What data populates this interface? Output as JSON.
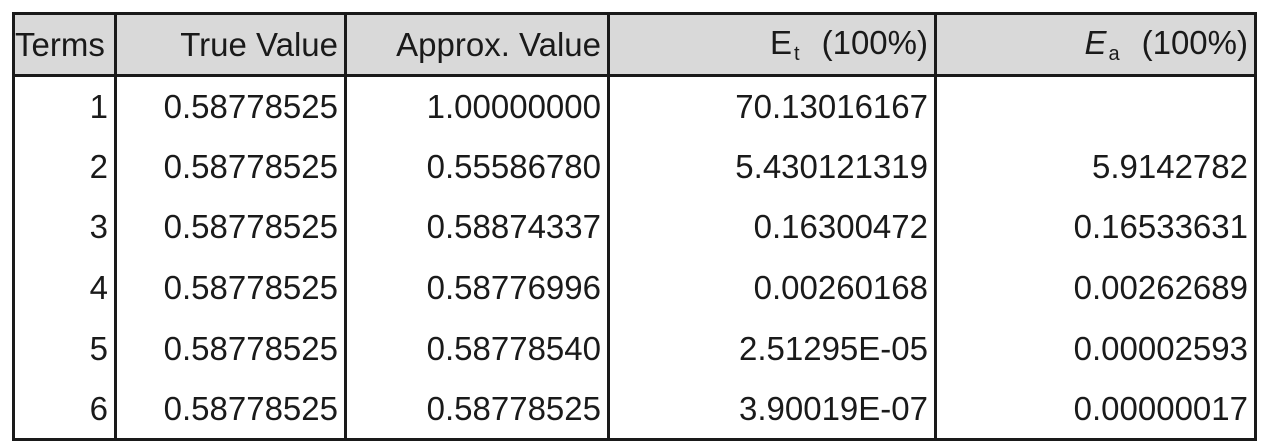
{
  "headers": {
    "terms": "Terms",
    "true_value": "True Value",
    "approx_value": "Approx. Value",
    "et_main": "E",
    "et_sub": "t",
    "et_unit": "(100%)",
    "ea_main": "E",
    "ea_sub": "a",
    "ea_unit": "(100%)"
  },
  "rows": [
    {
      "terms": "1",
      "true_value": "0.58778525",
      "approx_value": "1.00000000",
      "et": "70.13016167",
      "ea": ""
    },
    {
      "terms": "2",
      "true_value": "0.58778525",
      "approx_value": "0.55586780",
      "et": "5.430121319",
      "ea": "5.9142782"
    },
    {
      "terms": "3",
      "true_value": "0.58778525",
      "approx_value": "0.58874337",
      "et": "0.16300472",
      "ea": "0.16533631"
    },
    {
      "terms": "4",
      "true_value": "0.58778525",
      "approx_value": "0.58776996",
      "et": "0.00260168",
      "ea": "0.00262689"
    },
    {
      "terms": "5",
      "true_value": "0.58778525",
      "approx_value": "0.58778540",
      "et": "2.51295E-05",
      "ea": "0.00002593"
    },
    {
      "terms": "6",
      "true_value": "0.58778525",
      "approx_value": "0.58778525",
      "et": "3.90019E-07",
      "ea": "0.00000017"
    }
  ]
}
